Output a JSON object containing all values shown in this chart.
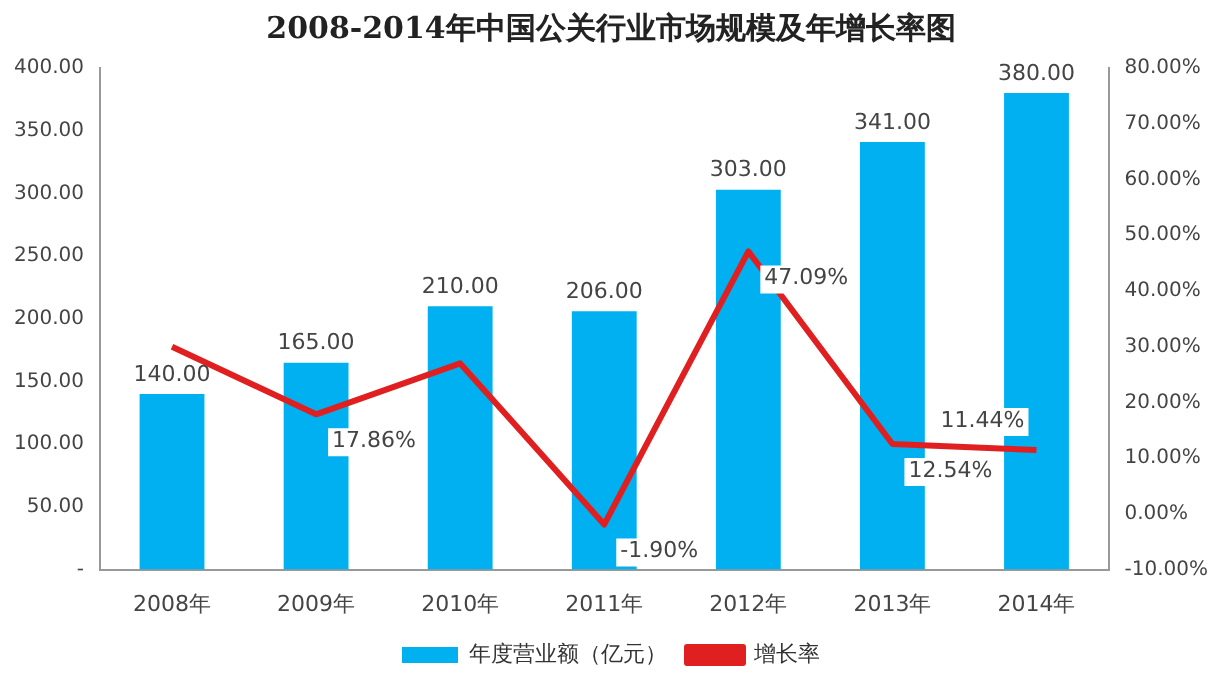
{
  "chart_data": {
    "type": "bar",
    "title": "2008-2014年中国公关行业市场规模及年增长率图",
    "categories": [
      "2008年",
      "2009年",
      "2010年",
      "2011年",
      "2012年",
      "2013年",
      "2014年"
    ],
    "series": [
      {
        "name": "年度营业额（亿元）",
        "color": "#00b0f0",
        "values": [
          140,
          165,
          210,
          206,
          303,
          341,
          380
        ],
        "value_labels": [
          "140.00",
          "165.00",
          "210.00",
          "206.00",
          "303.00",
          "341.00",
          "380.00"
        ]
      },
      {
        "name": "增长率",
        "type": "line",
        "axis": "y2",
        "color": "#e02020",
        "values": [
          30,
          17.86,
          27,
          -1.9,
          47.09,
          12.54,
          11.44
        ],
        "value_labels": [
          null,
          "17.86%",
          null,
          "-1.90%",
          "47.09%",
          "12.54%",
          "11.44%"
        ]
      }
    ],
    "ylim": [
      0,
      400
    ],
    "yticks": [
      {
        "value": 0,
        "label": "-"
      },
      {
        "value": 50,
        "label": "50.00"
      },
      {
        "value": 100,
        "label": "100.00"
      },
      {
        "value": 150,
        "label": "150.00"
      },
      {
        "value": 200,
        "label": "200.00"
      },
      {
        "value": 250,
        "label": "250.00"
      },
      {
        "value": 300,
        "label": "300.00"
      },
      {
        "value": 350,
        "label": "350.00"
      },
      {
        "value": 400,
        "label": "400.00"
      }
    ],
    "y2lim": [
      -10,
      80
    ],
    "y2ticks": [
      {
        "value": -10,
        "label": "-10.00%"
      },
      {
        "value": 0,
        "label": "0.00%"
      },
      {
        "value": 10,
        "label": "10.00%"
      },
      {
        "value": 20,
        "label": "20.00%"
      },
      {
        "value": 30,
        "label": "30.00%"
      },
      {
        "value": 40,
        "label": "40.00%"
      },
      {
        "value": 50,
        "label": "50.00%"
      },
      {
        "value": 60,
        "label": "60.00%"
      },
      {
        "value": 70,
        "label": "70.00%"
      },
      {
        "value": 80,
        "label": "80.00%"
      }
    ],
    "grid": false,
    "legend": "bottom",
    "marker": "none",
    "line_style": "solid"
  }
}
